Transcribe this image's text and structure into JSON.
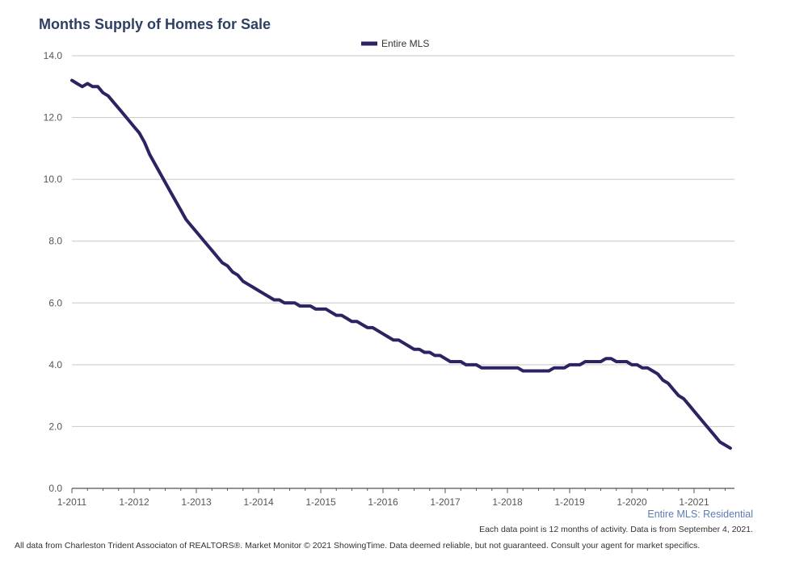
{
  "chart_data": {
    "type": "line",
    "title": "Months Supply of Homes for Sale",
    "xlabel": "",
    "ylabel": "",
    "ylim": [
      0,
      14
    ],
    "yticks": [
      "0.0",
      "2.0",
      "4.0",
      "6.0",
      "8.0",
      "10.0",
      "12.0",
      "14.0"
    ],
    "xticks": [
      "1-2011",
      "1-2012",
      "1-2013",
      "1-2014",
      "1-2015",
      "1-2016",
      "1-2017",
      "1-2018",
      "1-2019",
      "1-2020",
      "1-2021"
    ],
    "grid": true,
    "legend_position": "top",
    "series": [
      {
        "name": "Entire MLS",
        "color": "#2b2463",
        "x_start": "1-2011",
        "values": [
          13.2,
          13.1,
          13.0,
          13.1,
          13.0,
          13.0,
          12.8,
          12.7,
          12.5,
          12.3,
          12.1,
          11.9,
          11.7,
          11.5,
          11.2,
          10.8,
          10.5,
          10.2,
          9.9,
          9.6,
          9.3,
          9.0,
          8.7,
          8.5,
          8.3,
          8.1,
          7.9,
          7.7,
          7.5,
          7.3,
          7.2,
          7.0,
          6.9,
          6.7,
          6.6,
          6.5,
          6.4,
          6.3,
          6.2,
          6.1,
          6.1,
          6.0,
          6.0,
          6.0,
          5.9,
          5.9,
          5.9,
          5.8,
          5.8,
          5.8,
          5.7,
          5.6,
          5.6,
          5.5,
          5.4,
          5.4,
          5.3,
          5.2,
          5.2,
          5.1,
          5.0,
          4.9,
          4.8,
          4.8,
          4.7,
          4.6,
          4.5,
          4.5,
          4.4,
          4.4,
          4.3,
          4.3,
          4.2,
          4.1,
          4.1,
          4.1,
          4.0,
          4.0,
          4.0,
          3.9,
          3.9,
          3.9,
          3.9,
          3.9,
          3.9,
          3.9,
          3.9,
          3.8,
          3.8,
          3.8,
          3.8,
          3.8,
          3.8,
          3.9,
          3.9,
          3.9,
          4.0,
          4.0,
          4.0,
          4.1,
          4.1,
          4.1,
          4.1,
          4.2,
          4.2,
          4.1,
          4.1,
          4.1,
          4.0,
          4.0,
          3.9,
          3.9,
          3.8,
          3.7,
          3.5,
          3.4,
          3.2,
          3.0,
          2.9,
          2.7,
          2.5,
          2.3,
          2.1,
          1.9,
          1.7,
          1.5,
          1.4,
          1.3
        ]
      }
    ]
  },
  "subtitle": "Entire MLS: Residential",
  "note": "Each data point is 12 months of activity. Data is from September 4, 2021.",
  "footer": "All data from Charleston Trident Associaton of REALTORS®. Market Monitor © 2021 ShowingTime. Data deemed reliable, but not guaranteed. Consult your agent for market specifics."
}
